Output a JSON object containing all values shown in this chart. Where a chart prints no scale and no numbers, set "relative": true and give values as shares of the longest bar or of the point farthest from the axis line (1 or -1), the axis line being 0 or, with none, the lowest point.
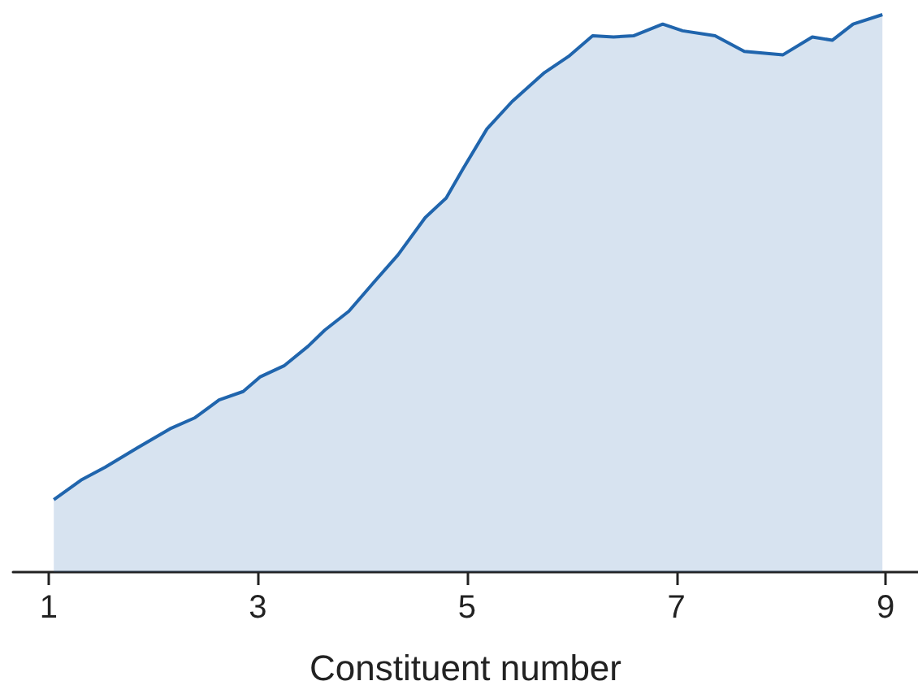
{
  "chart_data": {
    "type": "area",
    "relative": true,
    "xlabel": "Constituent number",
    "xlim": [
      0.66,
      9.31
    ],
    "xticks": [
      1,
      3,
      5,
      7,
      9
    ],
    "series": [
      {
        "color": "#2065ad",
        "x": [
          1.05,
          1.31,
          1.54,
          1.85,
          2.16,
          2.4,
          2.63,
          2.86,
          3.02,
          3.25,
          3.48,
          3.64,
          3.87,
          4.11,
          4.34,
          4.6,
          4.8,
          4.96,
          5.19,
          5.43,
          5.74,
          5.97,
          6.2,
          6.4,
          6.59,
          6.87,
          7.06,
          7.37,
          7.65,
          8.02,
          8.3,
          8.49,
          8.69,
          8.97
        ],
        "values": [
          0.13,
          0.165,
          0.188,
          0.223,
          0.257,
          0.277,
          0.309,
          0.324,
          0.35,
          0.37,
          0.405,
          0.434,
          0.468,
          0.52,
          0.569,
          0.636,
          0.671,
          0.723,
          0.795,
          0.844,
          0.896,
          0.925,
          0.962,
          0.96,
          0.962,
          0.983,
          0.971,
          0.962,
          0.934,
          0.928,
          0.96,
          0.954,
          0.983,
          1.0
        ]
      }
    ]
  }
}
